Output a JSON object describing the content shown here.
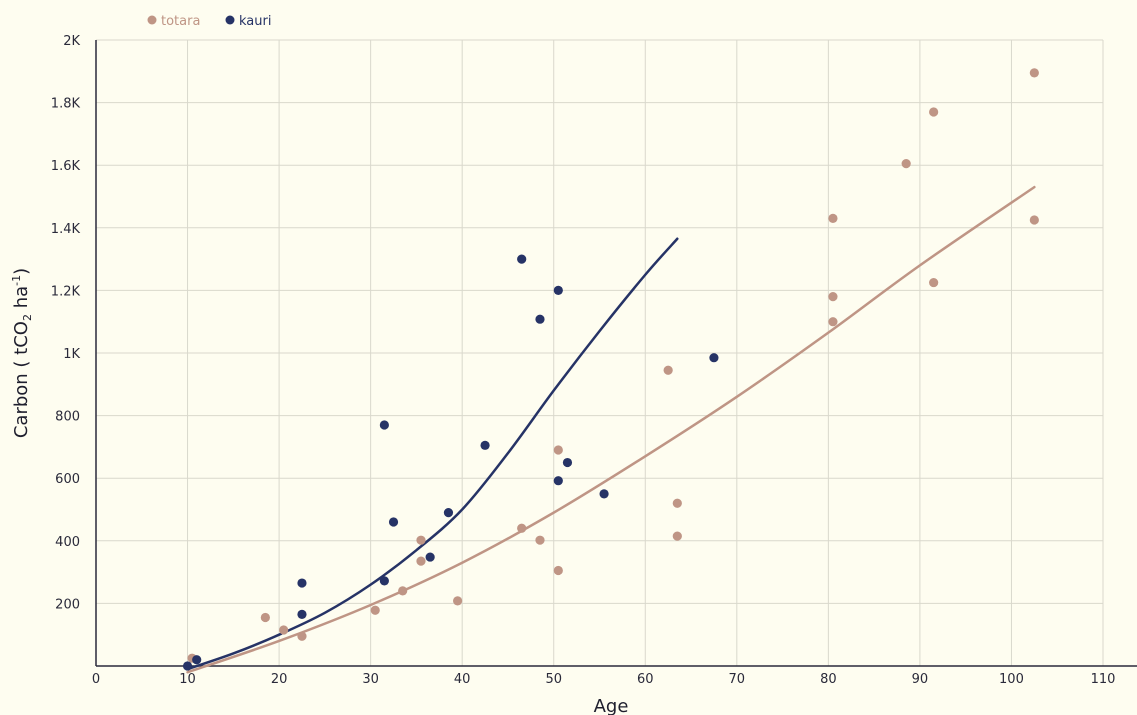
{
  "chart_data": {
    "type": "scatter",
    "title": "",
    "xlabel": "Age",
    "ylabel": "Carbon ( tCO2 ha-1)",
    "ylabel_parts": {
      "pre": "Carbon ( tCO",
      "sub": "2",
      "mid": " ha",
      "sup": "-1",
      "post": ")"
    },
    "xlim": [
      0,
      110
    ],
    "ylim": [
      0,
      2000
    ],
    "x_ticks": [
      0,
      10,
      20,
      30,
      40,
      50,
      60,
      70,
      80,
      90,
      100,
      110
    ],
    "x_tick_labels": [
      "0",
      "10",
      "20",
      "30",
      "40",
      "50",
      "60",
      "70",
      "80",
      "90",
      "100",
      "110"
    ],
    "y_ticks": [
      200,
      400,
      600,
      800,
      1000,
      1200,
      1400,
      1600,
      1800,
      2000
    ],
    "y_tick_labels": [
      "200",
      "400",
      "600",
      "800",
      "1K",
      "1.2K",
      "1.4K",
      "1.6K",
      "1.8K",
      "2K"
    ],
    "grid": true,
    "legend_position": "top-left",
    "series": [
      {
        "name": "totara",
        "color": "#bf9585",
        "points": [
          [
            10.5,
            25
          ],
          [
            18.5,
            155
          ],
          [
            20.5,
            115
          ],
          [
            22.5,
            95
          ],
          [
            30.5,
            178
          ],
          [
            33.5,
            240
          ],
          [
            35.5,
            335
          ],
          [
            35.5,
            402
          ],
          [
            39.5,
            208
          ],
          [
            46.5,
            440
          ],
          [
            48.5,
            402
          ],
          [
            50.5,
            305
          ],
          [
            50.5,
            690
          ],
          [
            62.5,
            945
          ],
          [
            63.5,
            520
          ],
          [
            63.5,
            415
          ],
          [
            80.5,
            1430
          ],
          [
            80.5,
            1180
          ],
          [
            80.5,
            1100
          ],
          [
            88.5,
            1605
          ],
          [
            91.5,
            1770
          ],
          [
            91.5,
            1225
          ],
          [
            102.5,
            1425
          ],
          [
            102.5,
            1895
          ]
        ],
        "trend": [
          [
            10,
            -20
          ],
          [
            20,
            80
          ],
          [
            30,
            195
          ],
          [
            40,
            330
          ],
          [
            50,
            490
          ],
          [
            60,
            670
          ],
          [
            70,
            860
          ],
          [
            80,
            1065
          ],
          [
            90,
            1280
          ],
          [
            102.5,
            1530
          ]
        ]
      },
      {
        "name": "kauri",
        "color": "#263366",
        "points": [
          [
            10,
            0
          ],
          [
            11,
            20
          ],
          [
            22.5,
            265
          ],
          [
            22.5,
            165
          ],
          [
            31.5,
            770
          ],
          [
            31.5,
            272
          ],
          [
            32.5,
            460
          ],
          [
            36.5,
            348
          ],
          [
            38.5,
            490
          ],
          [
            42.5,
            705
          ],
          [
            46.5,
            1300
          ],
          [
            48.5,
            1108
          ],
          [
            50.5,
            1200
          ],
          [
            50.5,
            592
          ],
          [
            51.5,
            650
          ],
          [
            55.5,
            550
          ],
          [
            67.5,
            985
          ]
        ],
        "trend": [
          [
            10,
            -10
          ],
          [
            15,
            40
          ],
          [
            20,
            100
          ],
          [
            25,
            170
          ],
          [
            30,
            260
          ],
          [
            35,
            370
          ],
          [
            40,
            500
          ],
          [
            45,
            680
          ],
          [
            50,
            880
          ],
          [
            55,
            1070
          ],
          [
            60,
            1250
          ],
          [
            63.5,
            1365
          ]
        ]
      }
    ]
  }
}
